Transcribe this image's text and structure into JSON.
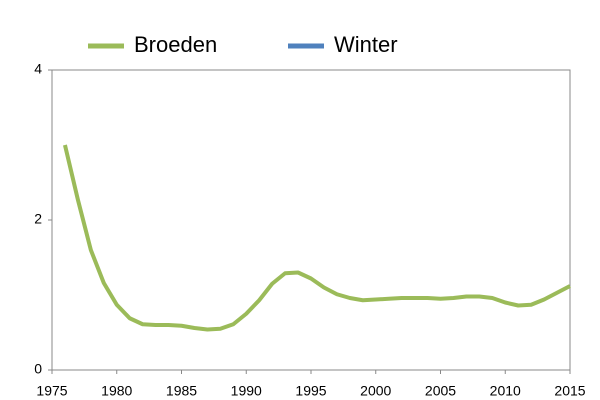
{
  "chart_data": {
    "type": "line",
    "x": [
      1976,
      1977,
      1978,
      1979,
      1980,
      1981,
      1982,
      1983,
      1984,
      1985,
      1986,
      1987,
      1988,
      1989,
      1990,
      1991,
      1992,
      1993,
      1994,
      1995,
      1996,
      1997,
      1998,
      1999,
      2000,
      2001,
      2002,
      2003,
      2004,
      2005,
      2006,
      2007,
      2008,
      2009,
      2010,
      2011,
      2012,
      2013,
      2014,
      2015
    ],
    "series": [
      {
        "name": "Broeden",
        "color": "#9bbb59",
        "values": [
          3.0,
          2.27,
          1.6,
          1.16,
          0.87,
          0.69,
          0.61,
          0.6,
          0.6,
          0.59,
          0.56,
          0.54,
          0.55,
          0.61,
          0.75,
          0.93,
          1.15,
          1.29,
          1.3,
          1.22,
          1.1,
          1.01,
          0.96,
          0.93,
          0.94,
          0.95,
          0.96,
          0.96,
          0.96,
          0.95,
          0.96,
          0.98,
          0.98,
          0.96,
          0.9,
          0.86,
          0.87,
          0.94,
          1.03,
          1.12
        ]
      },
      {
        "name": "Winter",
        "color": "#4f81bd",
        "values": [
          null,
          null,
          null,
          null,
          null,
          null,
          null,
          null,
          null,
          null,
          null,
          null,
          null,
          null,
          null,
          null,
          null,
          null,
          null,
          null,
          null,
          null,
          null,
          null,
          null,
          null,
          null,
          null,
          null,
          null,
          null,
          null,
          null,
          null,
          null,
          null,
          null,
          null,
          null,
          null
        ]
      }
    ],
    "xlim": [
      1975,
      2015
    ],
    "xticks": [
      1975,
      1980,
      1985,
      1990,
      1995,
      2000,
      2005,
      2010,
      2015
    ],
    "ylim": [
      0,
      4
    ],
    "yticks": [
      0,
      2,
      4
    ],
    "grid": false
  }
}
